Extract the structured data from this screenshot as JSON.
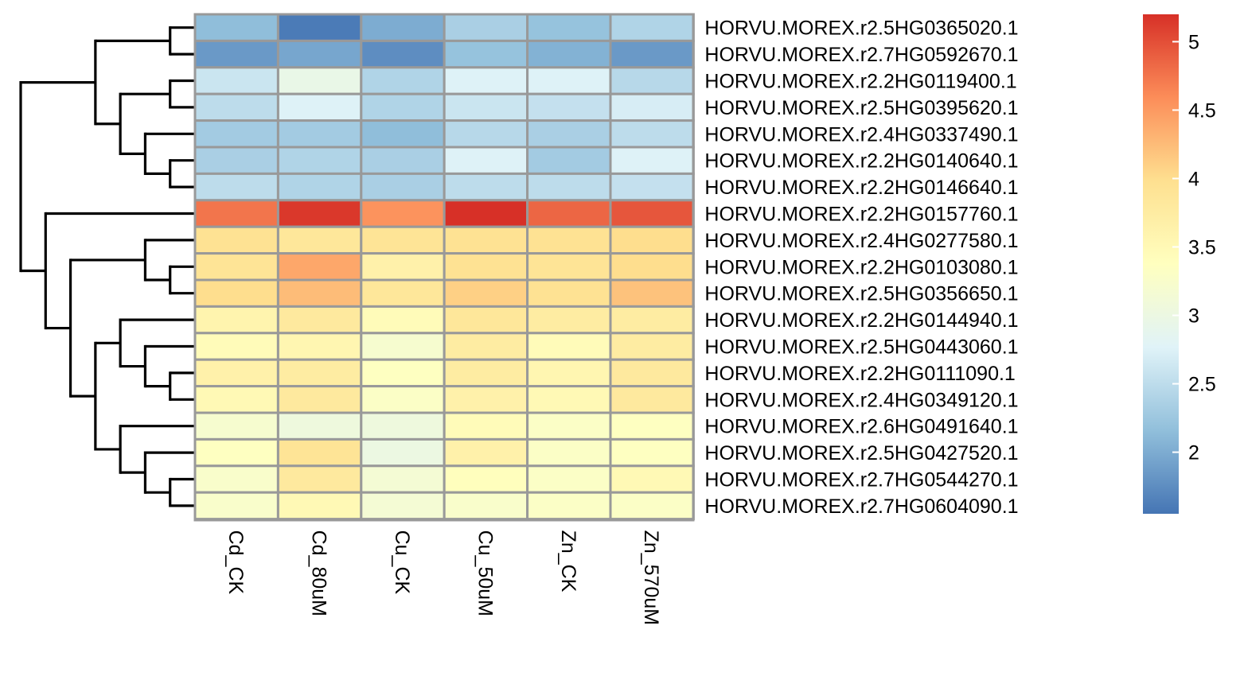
{
  "chart_data": {
    "type": "heatmap",
    "title": "",
    "xlabel": "",
    "ylabel": "",
    "columns": [
      "Cd_CK",
      "Cd_80uM",
      "Cu_CK",
      "Cu_50uM",
      "Zn_CK",
      "Zn_570uM"
    ],
    "rows": [
      "HORVU.MOREX.r2.5HG0365020.1",
      "HORVU.MOREX.r2.7HG0592670.1",
      "HORVU.MOREX.r2.2HG0119400.1",
      "HORVU.MOREX.r2.5HG0395620.1",
      "HORVU.MOREX.r2.4HG0337490.1",
      "HORVU.MOREX.r2.2HG0140640.1",
      "HORVU.MOREX.r2.2HG0146640.1",
      "HORVU.MOREX.r2.2HG0157760.1",
      "HORVU.MOREX.r2.4HG0277580.1",
      "HORVU.MOREX.r2.2HG0103080.1",
      "HORVU.MOREX.r2.5HG0356650.1",
      "HORVU.MOREX.r2.2HG0144940.1",
      "HORVU.MOREX.r2.5HG0443060.1",
      "HORVU.MOREX.r2.2HG0111090.1",
      "HORVU.MOREX.r2.4HG0349120.1",
      "HORVU.MOREX.r2.6HG0491640.1",
      "HORVU.MOREX.r2.5HG0427520.1",
      "HORVU.MOREX.r2.7HG0544270.1",
      "HORVU.MOREX.r2.7HG0604090.1"
    ],
    "values": [
      [
        2.15,
        1.6,
        2.0,
        2.35,
        2.2,
        2.4
      ],
      [
        1.85,
        1.95,
        1.75,
        2.2,
        2.05,
        1.85
      ],
      [
        2.6,
        2.95,
        2.4,
        2.75,
        2.75,
        2.45
      ],
      [
        2.5,
        2.75,
        2.4,
        2.6,
        2.55,
        2.7
      ],
      [
        2.3,
        2.3,
        2.15,
        2.45,
        2.35,
        2.5
      ],
      [
        2.35,
        2.4,
        2.35,
        2.75,
        2.3,
        2.75
      ],
      [
        2.5,
        2.4,
        2.35,
        2.5,
        2.5,
        2.55
      ],
      [
        4.75,
        5.15,
        4.55,
        5.2,
        4.85,
        4.95
      ],
      [
        3.95,
        3.85,
        3.9,
        3.95,
        3.95,
        4.0
      ],
      [
        3.9,
        4.4,
        3.65,
        3.95,
        3.9,
        4.0
      ],
      [
        4.0,
        4.25,
        3.85,
        4.1,
        3.95,
        4.2
      ],
      [
        3.6,
        3.8,
        3.45,
        3.85,
        3.75,
        3.75
      ],
      [
        3.45,
        3.55,
        3.2,
        3.75,
        3.45,
        3.75
      ],
      [
        3.65,
        3.75,
        3.35,
        3.75,
        3.55,
        3.8
      ],
      [
        3.5,
        3.8,
        3.3,
        3.65,
        3.5,
        3.8
      ],
      [
        3.2,
        3.05,
        3.05,
        3.45,
        3.3,
        3.35
      ],
      [
        3.35,
        3.9,
        3.0,
        3.65,
        3.3,
        3.35
      ],
      [
        3.25,
        3.8,
        3.15,
        3.4,
        3.3,
        3.5
      ],
      [
        3.25,
        3.5,
        3.15,
        3.25,
        3.3,
        3.3
      ]
    ],
    "color_scale": {
      "min": 1.55,
      "max": 5.2,
      "stops": [
        "#4575b4",
        "#91bfdb",
        "#e0f3f8",
        "#ffffbf",
        "#fee090",
        "#fc8d59",
        "#d73027"
      ]
    },
    "legend": {
      "position": "right",
      "ticks": [
        2,
        2.5,
        3,
        3.5,
        4,
        4.5,
        5
      ],
      "tick_labels": [
        "2",
        "2.5",
        "3",
        "3.5",
        "4",
        "4.5",
        "5"
      ]
    },
    "cell_border_color": "#999999",
    "row_dendrogram": {
      "children": [
        {
          "children": [
            {
              "children": [
                0,
                1
              ]
            },
            {
              "children": [
                {
                  "children": [
                    2,
                    3
                  ]
                },
                {
                  "children": [
                    4,
                    {
                      "children": [
                        5,
                        6
                      ]
                    }
                  ]
                }
              ]
            }
          ]
        },
        {
          "children": [
            7,
            {
              "children": [
                {
                  "children": [
                    8,
                    {
                      "children": [
                        9,
                        10
                      ]
                    }
                  ]
                },
                {
                  "children": [
                    {
                      "children": [
                        11,
                        {
                          "children": [
                            12,
                            {
                              "children": [
                                13,
                                14
                              ]
                            }
                          ]
                        }
                      ]
                    },
                    {
                      "children": [
                        15,
                        {
                          "children": [
                            16,
                            {
                              "children": [
                                17,
                                18
                              ]
                            }
                          ]
                        }
                      ]
                    }
                  ]
                }
              ]
            }
          ]
        }
      ]
    }
  }
}
